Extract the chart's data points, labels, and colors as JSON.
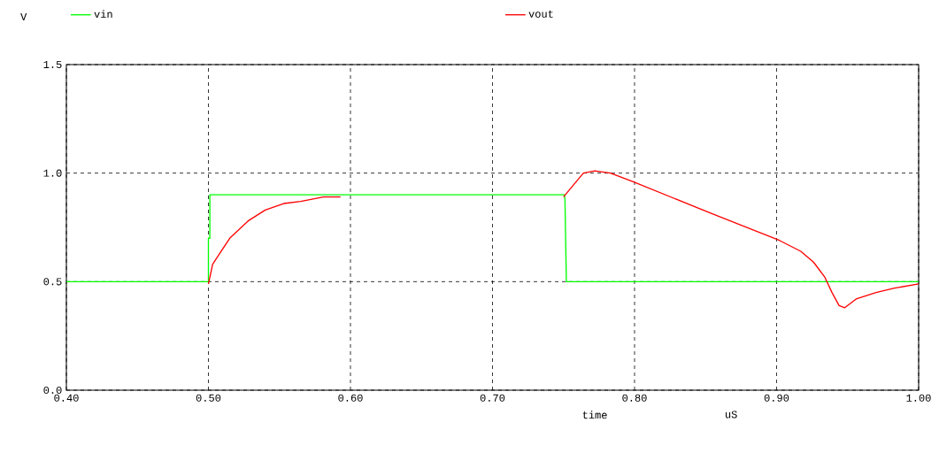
{
  "chart_data": {
    "type": "line",
    "xlabel": "time",
    "ylabel": "V",
    "annotations": [
      "uS"
    ],
    "xlim": [
      0.4,
      1.0
    ],
    "ylim": [
      0.0,
      1.5
    ],
    "xticks": [
      {
        "value": 0.4,
        "label": "0.40"
      },
      {
        "value": 0.5,
        "label": "0.50"
      },
      {
        "value": 0.6,
        "label": "0.60"
      },
      {
        "value": 0.7,
        "label": "0.70"
      },
      {
        "value": 0.8,
        "label": "0.80"
      },
      {
        "value": 0.9,
        "label": "0.90"
      },
      {
        "value": 1.0,
        "label": "1.00"
      }
    ],
    "yticks": [
      {
        "value": 0.0,
        "label": "0.0"
      },
      {
        "value": 0.5,
        "label": "0.5"
      },
      {
        "value": 1.0,
        "label": "1.0"
      },
      {
        "value": 1.5,
        "label": "1.5"
      }
    ],
    "grid": true,
    "legend": "top",
    "marker": "none",
    "line_style": "solid",
    "series": [
      {
        "name": "vin",
        "color": "#00ff00",
        "x": [
          0.4,
          0.5,
          0.5,
          0.501,
          0.501,
          0.7505,
          0.751,
          0.752,
          1.0
        ],
        "values": [
          0.5,
          0.5,
          0.7,
          0.7,
          0.9,
          0.9,
          0.88,
          0.5,
          0.5
        ]
      },
      {
        "name": "vout",
        "color": "#ff0000",
        "x": [
          0.5,
          0.503,
          0.509,
          0.515,
          0.528,
          0.54,
          0.553,
          0.565,
          0.581,
          0.593,
          0.65,
          0.75,
          0.755,
          0.764,
          0.772,
          0.783,
          0.799,
          0.852,
          0.902,
          0.917,
          0.926,
          0.934,
          0.939,
          0.944,
          0.948,
          0.956,
          0.97,
          0.983,
          1.0
        ],
        "values": [
          0.49,
          0.58,
          0.64,
          0.7,
          0.78,
          0.83,
          0.86,
          0.87,
          0.89,
          0.89,
          null,
          0.89,
          0.93,
          1.0,
          1.01,
          1.0,
          0.96,
          0.82,
          0.69,
          0.64,
          0.59,
          0.52,
          0.45,
          0.39,
          0.38,
          0.42,
          0.45,
          0.47,
          0.49
        ]
      }
    ]
  }
}
